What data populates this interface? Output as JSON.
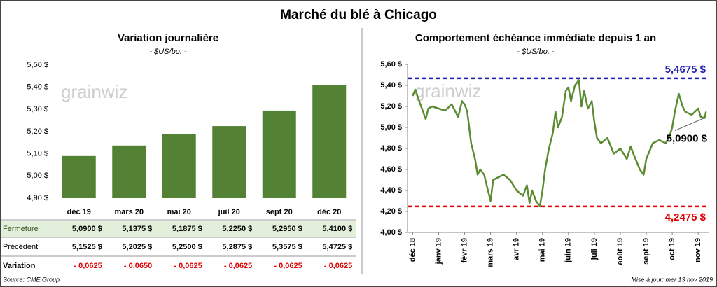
{
  "title": "Marché du blé à Chicago",
  "chart_data": [
    {
      "type": "bar",
      "title": "Variation journalière",
      "subtitle": "- $US/bo. -",
      "watermark": "grainwiz",
      "categories": [
        "déc 19",
        "mars 20",
        "mai 20",
        "juil 20",
        "sept 20",
        "déc 20"
      ],
      "values": [
        5.09,
        5.1375,
        5.1875,
        5.225,
        5.295,
        5.41
      ],
      "color": "#548235",
      "ylim": [
        4.9,
        5.5
      ],
      "yticks": [
        {
          "value": 4.9,
          "label": "4,90 $"
        },
        {
          "value": 5.0,
          "label": "5,00 $"
        },
        {
          "value": 5.1,
          "label": "5,10 $"
        },
        {
          "value": 5.2,
          "label": "5,20 $"
        },
        {
          "value": 5.3,
          "label": "5,30 $"
        },
        {
          "value": 5.4,
          "label": "5,40 $"
        },
        {
          "value": 5.5,
          "label": "5,50 $"
        }
      ],
      "grid": false
    },
    {
      "type": "line",
      "title": "Comportement  échéance immédiate depuis 1 an",
      "subtitle": "- $US/bo. -",
      "watermark": "grainwiz",
      "xlim": [
        -0.2,
        11.4
      ],
      "xticks": [
        {
          "value": 0,
          "label": "déc 18"
        },
        {
          "value": 1,
          "label": "janv 19"
        },
        {
          "value": 2,
          "label": "févr 19"
        },
        {
          "value": 3,
          "label": "mars 19"
        },
        {
          "value": 4,
          "label": "avr 19"
        },
        {
          "value": 5,
          "label": "mai 19"
        },
        {
          "value": 6,
          "label": "juin 19"
        },
        {
          "value": 7,
          "label": "juil 19"
        },
        {
          "value": 8,
          "label": "août 19"
        },
        {
          "value": 9,
          "label": "sept 19"
        },
        {
          "value": 10,
          "label": "oct 19"
        },
        {
          "value": 11,
          "label": "nov 19"
        }
      ],
      "ylim": [
        4.0,
        5.6
      ],
      "yticks": [
        {
          "value": 4.0,
          "label": "4,00 $"
        },
        {
          "value": 4.2,
          "label": "4,20 $"
        },
        {
          "value": 4.4,
          "label": "4,40 $"
        },
        {
          "value": 4.6,
          "label": "4,60 $"
        },
        {
          "value": 4.8,
          "label": "4,80 $"
        },
        {
          "value": 5.0,
          "label": "5,00 $"
        },
        {
          "value": 5.2,
          "label": "5,20 $"
        },
        {
          "value": 5.4,
          "label": "5,40 $"
        },
        {
          "value": 5.6,
          "label": "5,60 $"
        }
      ],
      "series": [
        {
          "color": "#5b8c32",
          "x": [
            0,
            0.1,
            0.25,
            0.4,
            0.5,
            0.6,
            0.75,
            1.0,
            1.25,
            1.5,
            1.75,
            1.9,
            2.0,
            2.1,
            2.25,
            2.4,
            2.5,
            2.6,
            2.75,
            2.9,
            3.0,
            3.1,
            3.25,
            3.5,
            3.75,
            4.0,
            4.25,
            4.4,
            4.5,
            4.6,
            4.75,
            4.9,
            5.0,
            5.1,
            5.25,
            5.4,
            5.5,
            5.6,
            5.75,
            5.9,
            6.0,
            6.1,
            6.25,
            6.4,
            6.5,
            6.6,
            6.75,
            6.9,
            7.0,
            7.1,
            7.25,
            7.5,
            7.75,
            8.0,
            8.25,
            8.4,
            8.5,
            8.75,
            8.9,
            9.0,
            9.25,
            9.5,
            9.75,
            9.9,
            10.0,
            10.1,
            10.25,
            10.4,
            10.5,
            10.75,
            11.0,
            11.1,
            11.25,
            11.3
          ],
          "values": [
            5.3,
            5.36,
            5.25,
            5.15,
            5.08,
            5.18,
            5.2,
            5.18,
            5.16,
            5.22,
            5.1,
            5.25,
            5.22,
            5.15,
            4.85,
            4.7,
            4.55,
            4.6,
            4.55,
            4.4,
            4.3,
            4.5,
            4.52,
            4.55,
            4.5,
            4.4,
            4.35,
            4.45,
            4.28,
            4.4,
            4.3,
            4.25,
            4.4,
            4.6,
            4.8,
            4.95,
            5.15,
            5.0,
            5.1,
            5.35,
            5.38,
            5.25,
            5.4,
            5.45,
            5.2,
            5.35,
            5.18,
            5.25,
            5.05,
            4.9,
            4.85,
            4.9,
            4.75,
            4.8,
            4.7,
            4.82,
            4.75,
            4.6,
            4.55,
            4.7,
            4.85,
            4.88,
            4.85,
            4.92,
            5.0,
            5.15,
            5.32,
            5.2,
            5.15,
            5.12,
            5.18,
            5.1,
            5.09,
            5.15
          ]
        }
      ],
      "hlines": [
        {
          "value": 5.4675,
          "label": "5,4675 $",
          "color": "#1f1fb4"
        },
        {
          "value": 4.2475,
          "label": "4,2475 $",
          "color": "#e00000"
        }
      ],
      "annotations": [
        {
          "value": 5.09,
          "label": "5,0900 $"
        }
      ]
    }
  ],
  "table": {
    "rows": [
      {
        "label": "Fermeture",
        "cells": [
          "5,0900  $",
          "5,1375  $",
          "5,1875  $",
          "5,2250  $",
          "5,2950  $",
          "5,4100  $"
        ]
      },
      {
        "label": "Précédent",
        "cells": [
          "5,1525  $",
          "5,2025  $",
          "5,2500  $",
          "5,2875  $",
          "5,3575  $",
          "5,4725  $"
        ]
      },
      {
        "label": "Variation",
        "cells": [
          "- 0,0625",
          "- 0,0650",
          "- 0,0625",
          "- 0,0625",
          "- 0,0625",
          "- 0,0625"
        ]
      }
    ]
  },
  "source": "Source: CME Group",
  "updated": "Mise à jour: mer 13 nov 2019"
}
